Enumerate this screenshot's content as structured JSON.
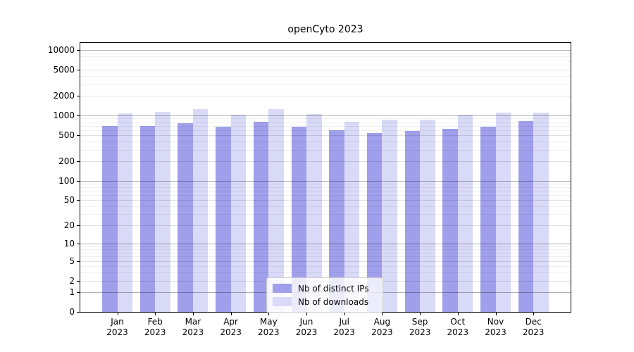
{
  "title": "openCyto 2023",
  "chart_data": {
    "type": "bar",
    "title": "openCyto 2023",
    "categories": [
      "Jan",
      "Feb",
      "Mar",
      "Apr",
      "May",
      "Jun",
      "Jul",
      "Aug",
      "Sep",
      "Oct",
      "Nov",
      "Dec"
    ],
    "x_second_line": "2023",
    "series": [
      {
        "name": "Nb of distinct IPs",
        "color": "#9f9fec",
        "values": [
          690,
          695,
          765,
          680,
          810,
          675,
          595,
          545,
          580,
          625,
          670,
          830
        ]
      },
      {
        "name": "Nb of downloads",
        "color": "#d9d9f8",
        "values": [
          1090,
          1130,
          1260,
          1020,
          1240,
          1060,
          810,
          865,
          875,
          1030,
          1110,
          1120
        ]
      }
    ],
    "yscale": "log10(value+1)",
    "y_ticks": [
      10000,
      5000,
      2000,
      1000,
      500,
      200,
      100,
      50,
      20,
      10,
      5,
      2,
      1,
      0
    ],
    "ylim": [
      0,
      12900
    ],
    "xlabel": "",
    "ylabel": "",
    "grid": true,
    "legend_position": "lower center",
    "axis_color": "#000000",
    "grid_major_color": "rgba(0,0,0,0.30)",
    "grid_mid_color": "rgba(0,0,0,0.12)",
    "grid_minor_color": "rgba(0,0,0,0.06)"
  }
}
